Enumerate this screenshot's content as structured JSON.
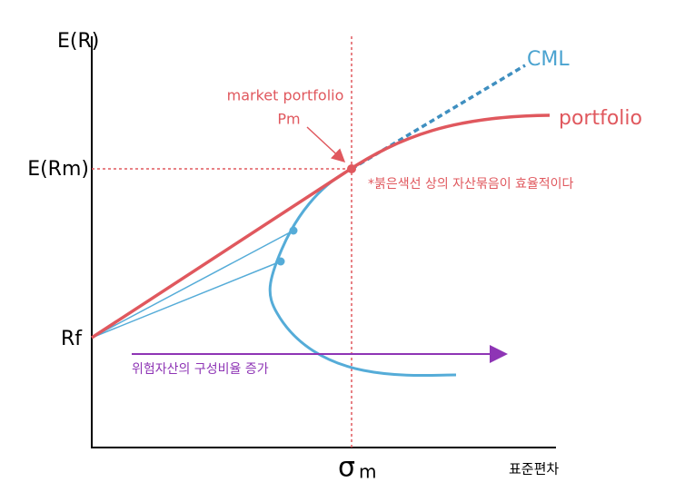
{
  "axes": {
    "y_label": "E(R)",
    "x_label": "표준편차",
    "y_marks": [
      "E(Rm)",
      "Rf"
    ],
    "x_mark": {
      "symbol": "σ",
      "subscript": "m"
    }
  },
  "curves": {
    "cml": "CML",
    "portfolio": "portfolio"
  },
  "market_portfolio": {
    "label": "market portfolio",
    "symbol": "Pm"
  },
  "notes": {
    "efficient": "*붉은색선 상의 자산묶음이 효율적이다",
    "arrow": "위험자산의 구성비율 증가"
  }
}
